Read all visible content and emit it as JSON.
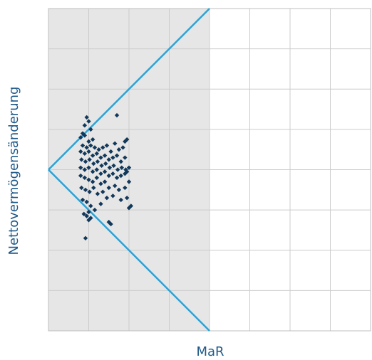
{
  "chart_data": {
    "type": "scatter",
    "title": "",
    "xlabel": "MaR",
    "ylabel": "Nettovermögensänderung",
    "tick_labels_shown": false,
    "grid": true,
    "grid_cells": {
      "columns": 8,
      "rows": 8
    },
    "xlim": [
      0,
      8
    ],
    "ylim": [
      -4,
      4
    ],
    "shaded_region": {
      "x": [
        0,
        4
      ],
      "color": "#e6e6e6"
    },
    "boundary_lines": {
      "shape": "wedge",
      "vertex": [
        0,
        0
      ],
      "upper_end": [
        4,
        4
      ],
      "lower_end": [
        4,
        -4
      ],
      "color": "#29a3d9"
    },
    "colors": {
      "axis_text": "#1f5a8a",
      "points": "#12385a",
      "grid": "#cccccc",
      "frame": "#bfbfbf"
    },
    "series": [
      {
        "points": [
          [
            0.95,
            1.3
          ],
          [
            1.0,
            1.2
          ],
          [
            0.9,
            1.1
          ],
          [
            1.05,
            1.0
          ],
          [
            0.85,
            0.9
          ],
          [
            1.7,
            1.35
          ],
          [
            1.0,
            0.7
          ],
          [
            1.1,
            0.75
          ],
          [
            0.8,
            0.8
          ],
          [
            0.9,
            0.85
          ],
          [
            1.95,
            0.75
          ],
          [
            1.9,
            0.7
          ],
          [
            0.85,
            0.6
          ],
          [
            0.95,
            0.55
          ],
          [
            1.05,
            0.6
          ],
          [
            1.15,
            0.55
          ],
          [
            1.25,
            0.5
          ],
          [
            1.35,
            0.55
          ],
          [
            1.45,
            0.6
          ],
          [
            1.55,
            0.45
          ],
          [
            1.75,
            0.5
          ],
          [
            1.85,
            0.55
          ],
          [
            1.65,
            0.65
          ],
          [
            0.8,
            0.45
          ],
          [
            0.9,
            0.4
          ],
          [
            1.0,
            0.45
          ],
          [
            1.1,
            0.35
          ],
          [
            1.2,
            0.4
          ],
          [
            1.3,
            0.3
          ],
          [
            1.4,
            0.35
          ],
          [
            1.5,
            0.25
          ],
          [
            1.6,
            0.3
          ],
          [
            1.7,
            0.35
          ],
          [
            1.8,
            0.2
          ],
          [
            1.9,
            0.3
          ],
          [
            0.82,
            0.25
          ],
          [
            0.92,
            0.2
          ],
          [
            1.02,
            0.25
          ],
          [
            1.12,
            0.15
          ],
          [
            1.22,
            0.2
          ],
          [
            1.32,
            0.1
          ],
          [
            1.42,
            0.15
          ],
          [
            1.52,
            0.05
          ],
          [
            1.62,
            0.1
          ],
          [
            1.72,
            0.0
          ],
          [
            1.82,
            0.05
          ],
          [
            1.92,
            0.0
          ],
          [
            0.8,
            0.05
          ],
          [
            0.9,
            0.0
          ],
          [
            1.0,
            0.05
          ],
          [
            1.1,
            -0.05
          ],
          [
            1.2,
            0.0
          ],
          [
            1.3,
            -0.1
          ],
          [
            1.4,
            -0.05
          ],
          [
            1.5,
            -0.15
          ],
          [
            1.6,
            -0.1
          ],
          [
            1.7,
            -0.2
          ],
          [
            1.8,
            -0.15
          ],
          [
            1.9,
            -0.1
          ],
          [
            2.0,
            0.05
          ],
          [
            1.95,
            -0.05
          ],
          [
            0.8,
            -0.15
          ],
          [
            0.9,
            -0.2
          ],
          [
            1.0,
            -0.25
          ],
          [
            1.1,
            -0.3
          ],
          [
            1.2,
            -0.2
          ],
          [
            1.3,
            -0.35
          ],
          [
            1.4,
            -0.3
          ],
          [
            1.5,
            -0.45
          ],
          [
            1.65,
            -0.4
          ],
          [
            1.75,
            -0.5
          ],
          [
            1.9,
            -0.45
          ],
          [
            2.0,
            -0.3
          ],
          [
            0.82,
            -0.45
          ],
          [
            0.92,
            -0.5
          ],
          [
            1.02,
            -0.55
          ],
          [
            1.12,
            -0.45
          ],
          [
            1.22,
            -0.6
          ],
          [
            1.35,
            -0.55
          ],
          [
            1.45,
            -0.7
          ],
          [
            1.6,
            -0.65
          ],
          [
            1.8,
            -0.75
          ],
          [
            1.95,
            -0.7
          ],
          [
            0.85,
            -0.75
          ],
          [
            0.95,
            -0.8
          ],
          [
            1.05,
            -0.9
          ],
          [
            1.15,
            -1.0
          ],
          [
            1.3,
            -0.85
          ],
          [
            2.0,
            -0.95
          ],
          [
            2.05,
            -0.9
          ],
          [
            0.88,
            -1.1
          ],
          [
            0.95,
            -1.15
          ],
          [
            1.0,
            -1.25
          ],
          [
            1.05,
            -1.2
          ],
          [
            1.0,
            -1.05
          ],
          [
            1.5,
            -1.3
          ],
          [
            1.55,
            -1.35
          ],
          [
            0.92,
            -1.7
          ]
        ]
      }
    ]
  }
}
